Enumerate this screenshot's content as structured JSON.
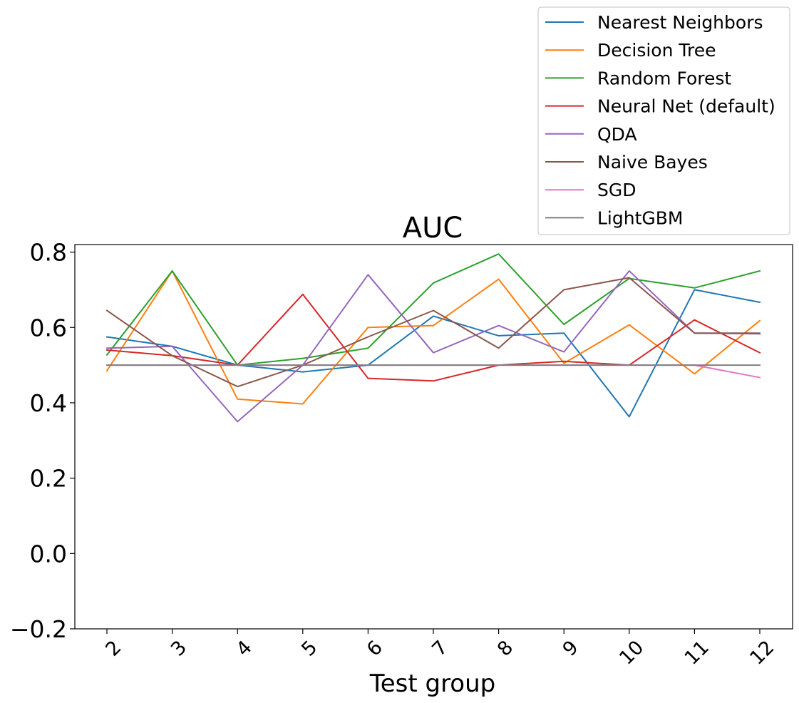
{
  "chart_data": {
    "type": "line",
    "title": "AUC",
    "xlabel": "Test group",
    "ylabel": "",
    "categories": [
      "2",
      "3",
      "4",
      "5",
      "6",
      "7",
      "8",
      "9",
      "10",
      "11",
      "12"
    ],
    "ylim": [
      -0.2,
      0.82
    ],
    "yticks": [
      -0.2,
      0.0,
      0.2,
      0.4,
      0.6,
      0.8
    ],
    "ytick_labels": [
      "−0.2",
      "0.0",
      "0.2",
      "0.4",
      "0.6",
      "0.8"
    ],
    "grid": false,
    "legend_position": "top-right",
    "series": [
      {
        "name": "Nearest Neighbors",
        "color": "#1f77b4",
        "values": [
          0.575,
          0.55,
          0.5,
          0.482,
          0.5,
          0.63,
          0.578,
          0.585,
          0.363,
          0.7,
          0.667
        ]
      },
      {
        "name": "Decision Tree",
        "color": "#ff7f0e",
        "values": [
          0.485,
          0.75,
          0.41,
          0.397,
          0.6,
          0.605,
          0.728,
          0.505,
          0.607,
          0.477,
          0.618
        ]
      },
      {
        "name": "Random Forest",
        "color": "#2ca02c",
        "values": [
          0.527,
          0.75,
          0.5,
          0.518,
          0.545,
          0.718,
          0.795,
          0.608,
          0.73,
          0.705,
          0.75
        ]
      },
      {
        "name": "Neural Net (default)",
        "color": "#d62728",
        "values": [
          0.54,
          0.525,
          0.5,
          0.688,
          0.465,
          0.458,
          0.5,
          0.51,
          0.5,
          0.62,
          0.533
        ]
      },
      {
        "name": "QDA",
        "color": "#9467bd",
        "values": [
          0.545,
          0.55,
          0.35,
          0.5,
          0.74,
          0.533,
          0.605,
          0.535,
          0.75,
          0.585,
          0.583
        ]
      },
      {
        "name": "Naive Bayes",
        "color": "#8c564b",
        "values": [
          0.645,
          0.525,
          0.443,
          0.5,
          0.575,
          0.645,
          0.545,
          0.7,
          0.732,
          0.585,
          0.585
        ]
      },
      {
        "name": "SGD",
        "color": "#e377c2",
        "values": [
          0.5,
          0.5,
          0.5,
          0.5,
          0.5,
          0.5,
          0.5,
          0.5,
          0.5,
          0.5,
          0.467
        ]
      },
      {
        "name": "LightGBM",
        "color": "#7f7f7f",
        "values": [
          0.5,
          0.5,
          0.5,
          0.5,
          0.5,
          0.5,
          0.5,
          0.5,
          0.5,
          0.5,
          0.5
        ]
      }
    ]
  }
}
